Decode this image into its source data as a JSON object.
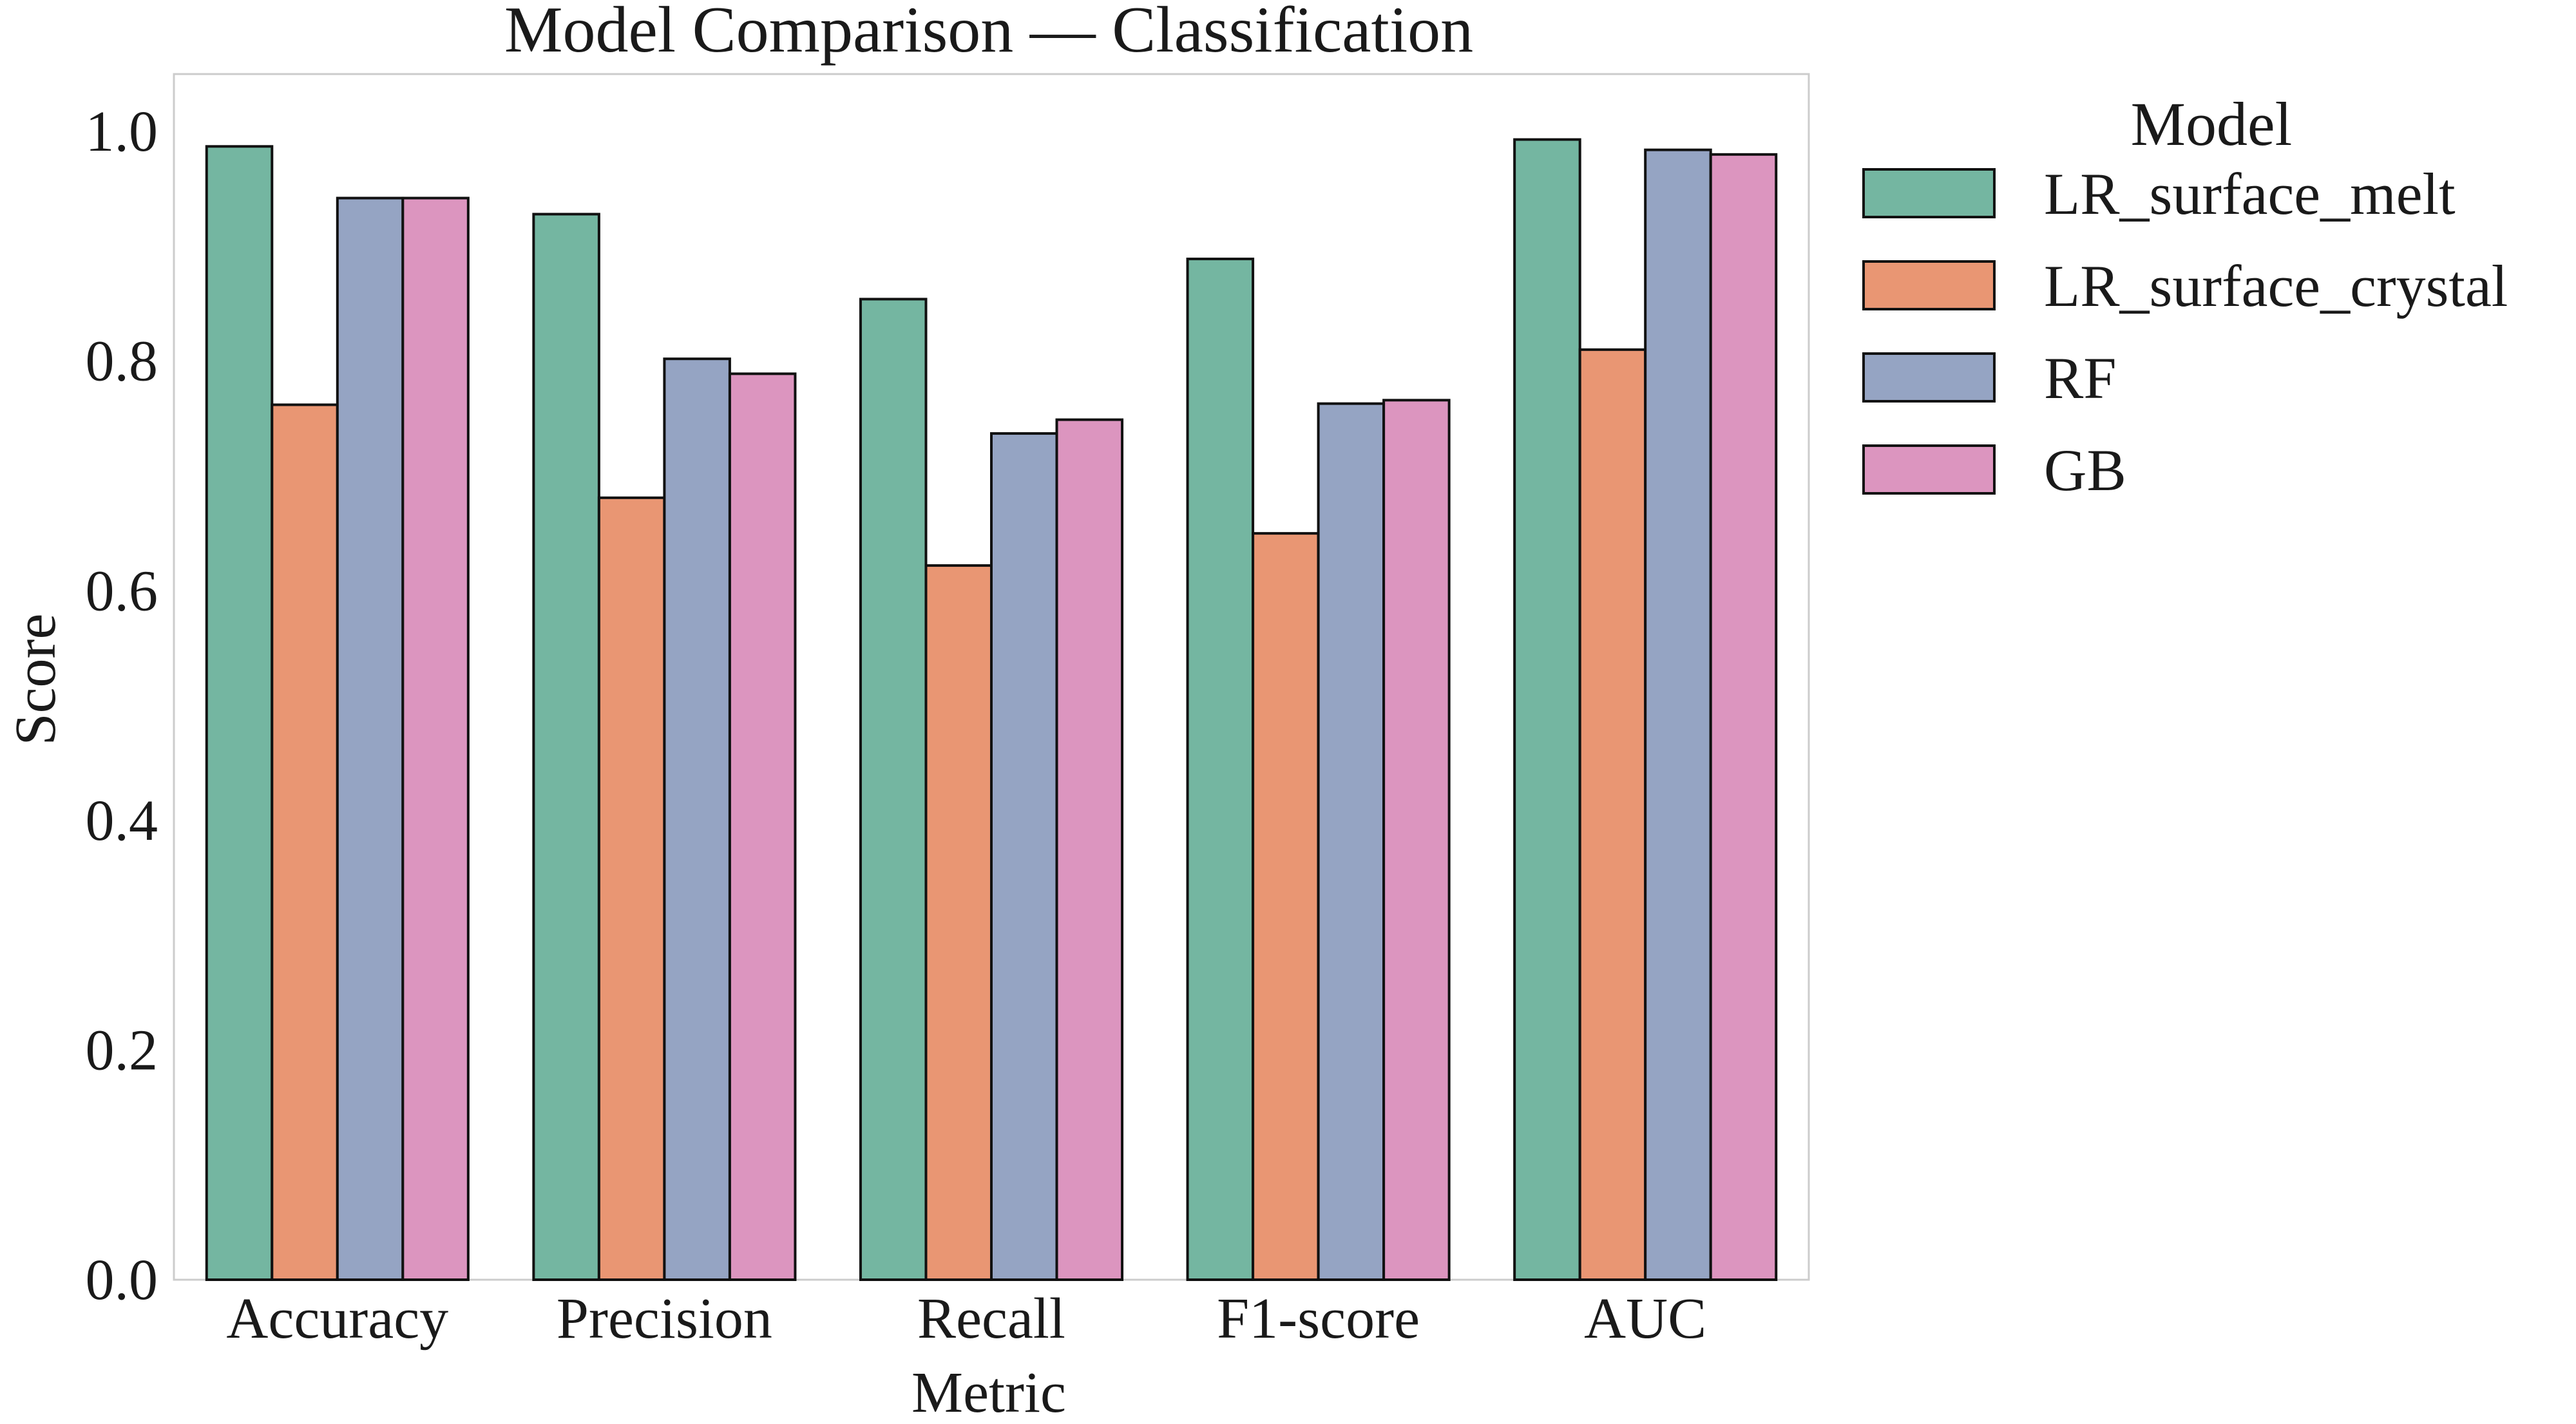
{
  "chart_data": {
    "type": "bar",
    "title": "Model Comparison — Classification",
    "xlabel": "Metric",
    "ylabel": "Score",
    "ylim": [
      0,
      1.05
    ],
    "yticks": [
      "0.0",
      "0.2",
      "0.4",
      "0.6",
      "0.8",
      "1.0"
    ],
    "grid": false,
    "categories": [
      "Accuracy",
      "Precision",
      "Recall",
      "F1-score",
      "AUC"
    ],
    "legend": {
      "title": "Model",
      "placement": "outside-right-top"
    },
    "series": [
      {
        "name": "LR_surface_melt",
        "color": "#74b6a1",
        "values": [
          0.987,
          0.928,
          0.854,
          0.889,
          0.993
        ]
      },
      {
        "name": "LR_surface_crystal",
        "color": "#e99673",
        "values": [
          0.762,
          0.681,
          0.622,
          0.65,
          0.81
        ]
      },
      {
        "name": "RF",
        "color": "#95a4c3",
        "values": [
          0.942,
          0.802,
          0.737,
          0.763,
          0.984
        ]
      },
      {
        "name": "GB",
        "color": "#dc95bf",
        "values": [
          0.942,
          0.789,
          0.749,
          0.766,
          0.98
        ]
      }
    ]
  }
}
